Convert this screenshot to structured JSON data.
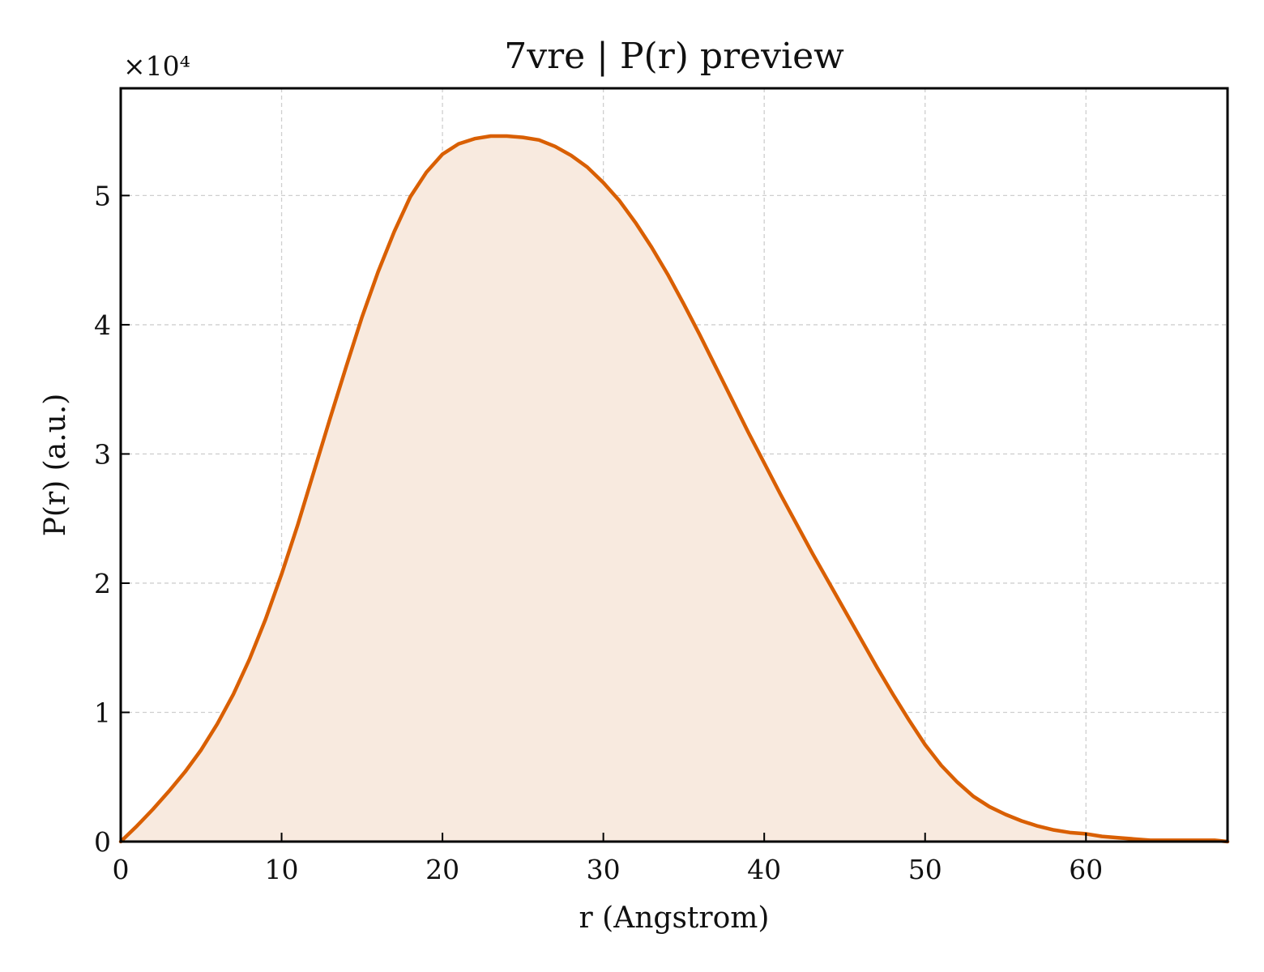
{
  "chart_data": {
    "type": "area",
    "title": "7vre | P(r) preview",
    "xlabel": "r (Angstrom)",
    "ylabel": "P(r) (a.u.)",
    "y_multiplier_label": "×10⁴",
    "xlim": [
      0,
      68.8
    ],
    "ylim": [
      0,
      5.83
    ],
    "xticks": [
      0,
      10,
      20,
      30,
      40,
      50,
      60
    ],
    "yticks": [
      0,
      1,
      2,
      3,
      4,
      5
    ],
    "grid": true,
    "legend": "none",
    "line_color": "#d95f02",
    "fill_color": "#f8eadf",
    "series": [
      {
        "x": [
          0,
          1,
          2,
          3,
          4,
          5,
          6,
          7,
          8,
          9,
          10,
          11,
          12,
          13,
          14,
          15,
          16,
          17,
          18,
          19,
          20,
          21,
          22,
          23,
          24,
          25,
          26,
          27,
          28,
          29,
          30,
          31,
          32,
          33,
          34,
          35,
          36,
          37,
          38,
          39,
          40,
          41,
          42,
          43,
          44,
          45,
          46,
          47,
          48,
          49,
          50,
          51,
          52,
          53,
          54,
          55,
          56,
          57,
          58,
          59,
          60,
          61,
          62,
          63,
          64,
          65,
          66,
          67,
          68,
          68.8
        ],
        "y": [
          0,
          0.12,
          0.25,
          0.39,
          0.54,
          0.71,
          0.91,
          1.14,
          1.41,
          1.72,
          2.07,
          2.45,
          2.86,
          3.27,
          3.67,
          4.06,
          4.41,
          4.72,
          4.99,
          5.18,
          5.32,
          5.4,
          5.44,
          5.46,
          5.46,
          5.45,
          5.43,
          5.38,
          5.31,
          5.22,
          5.1,
          4.96,
          4.79,
          4.6,
          4.39,
          4.16,
          3.92,
          3.67,
          3.42,
          3.17,
          2.93,
          2.69,
          2.46,
          2.23,
          2.01,
          1.79,
          1.57,
          1.35,
          1.14,
          0.94,
          0.75,
          0.59,
          0.46,
          0.35,
          0.27,
          0.21,
          0.16,
          0.12,
          0.09,
          0.07,
          0.06,
          0.04,
          0.03,
          0.02,
          0.01,
          0.01,
          0.01,
          0.01,
          0.01,
          0
        ]
      }
    ]
  }
}
